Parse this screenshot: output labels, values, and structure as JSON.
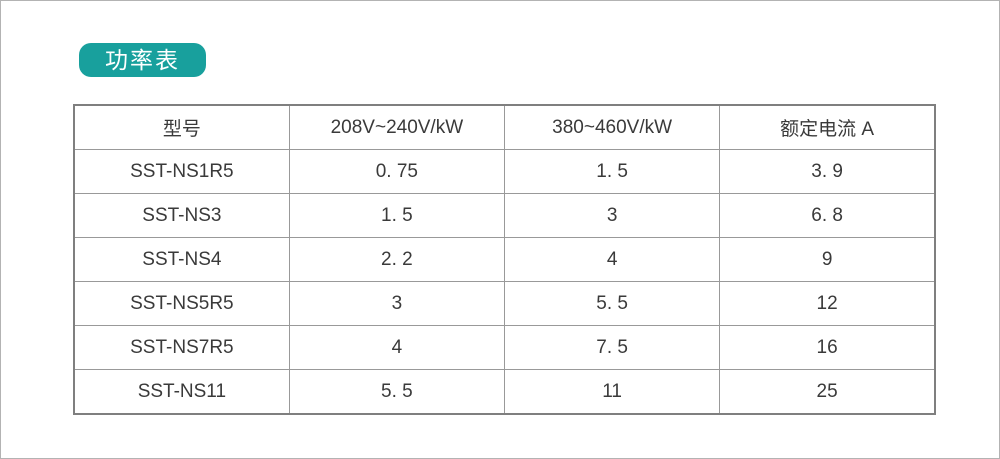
{
  "page": {
    "background_color": "#ffffff",
    "border_color": "#b3b3b3"
  },
  "title_badge": {
    "label": "功率表",
    "background_color": "#18a09d",
    "text_color": "#ffffff"
  },
  "table": {
    "grid_color": "#999999",
    "outer_border_color": "#7f7f7f",
    "headers": [
      "型号",
      "208V~240V/kW",
      "380~460V/kW",
      "额定电流 A"
    ],
    "rows": [
      [
        "SST-NS1R5",
        "0. 75",
        "1. 5",
        "3. 9"
      ],
      [
        "SST-NS3",
        "1. 5",
        "3",
        "6. 8"
      ],
      [
        "SST-NS4",
        "2. 2",
        "4",
        "9"
      ],
      [
        "SST-NS5R5",
        "3",
        "5. 5",
        "12"
      ],
      [
        "SST-NS7R5",
        "4",
        "7. 5",
        "16"
      ],
      [
        "SST-NS11",
        "5. 5",
        "11",
        "25"
      ]
    ]
  }
}
